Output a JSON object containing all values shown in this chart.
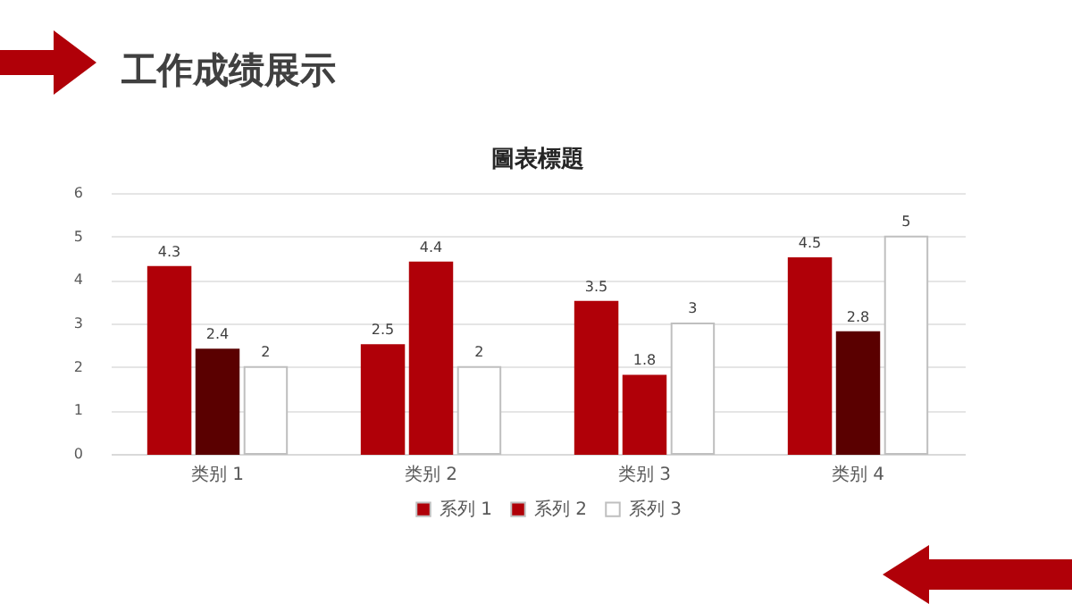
{
  "chart_data": {
    "type": "bar",
    "title": "工作成绩展示",
    "subtitle": "圖表標題",
    "categories": [
      "类别 1",
      "类别 2",
      "类别 3",
      "类别 4"
    ],
    "series": [
      {
        "name": "系列 1",
        "color": "#b00008",
        "values": [
          4.3,
          2.5,
          3.5,
          4.5
        ]
      },
      {
        "name": "系列 2",
        "color": "#b00008",
        "colors": [
          "#5a0000",
          "#b00008",
          "#b00008",
          "#5a0000"
        ],
        "values": [
          2.4,
          4.4,
          1.8,
          2.8
        ]
      },
      {
        "name": "系列 3",
        "color": "#ffffff",
        "values": [
          2,
          2,
          3,
          5
        ]
      }
    ],
    "ylim": [
      0,
      6
    ],
    "yticks": [
      0,
      1,
      2,
      3,
      4,
      5,
      6
    ],
    "grid": "y",
    "legend": "bottom",
    "data_labels": true
  }
}
